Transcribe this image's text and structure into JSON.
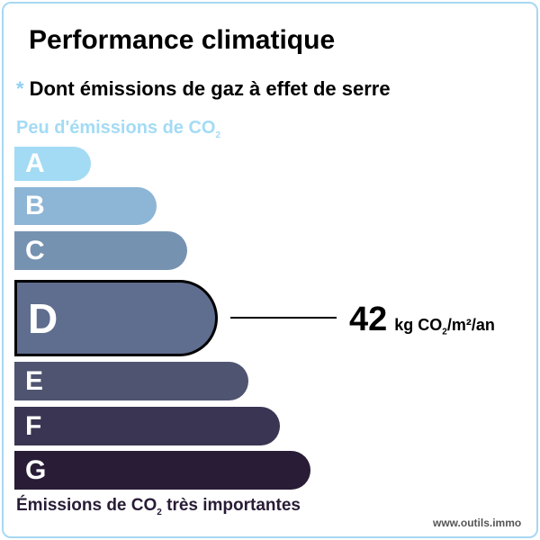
{
  "title": "Performance climatique",
  "subtitle_marker": "*",
  "subtitle": "Dont émissions de gaz à effet de serre",
  "low_label": {
    "text": "Peu d'émissions de CO",
    "sub": "2"
  },
  "high_label": {
    "text": "Émissions de CO",
    "sub": "2",
    "suffix": " très importantes"
  },
  "selected_class": "D",
  "classes": [
    {
      "letter": "A",
      "color": "#a3dbf5"
    },
    {
      "letter": "B",
      "color": "#8db5d6"
    },
    {
      "letter": "C",
      "color": "#7692b1"
    },
    {
      "letter": "D",
      "color": "#5f6d8e"
    },
    {
      "letter": "E",
      "color": "#4f5470"
    },
    {
      "letter": "F",
      "color": "#3a3552"
    },
    {
      "letter": "G",
      "color": "#281c36"
    }
  ],
  "value": {
    "number": "42",
    "unit_pre": "kg CO",
    "unit_sub": "2",
    "unit_post": "/m²/an"
  },
  "site": "www.outils.immo"
}
